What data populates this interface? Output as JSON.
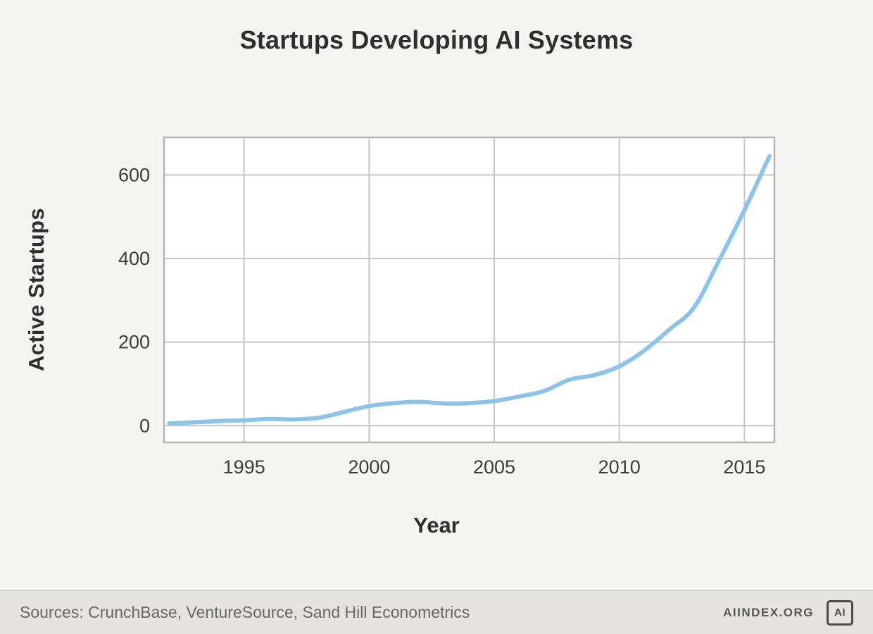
{
  "chart_data": {
    "type": "line",
    "title": "Startups Developing AI Systems",
    "xlabel": "Year",
    "ylabel": "Active Startups",
    "x": [
      1992,
      1993,
      1994,
      1995,
      1996,
      1997,
      1998,
      1999,
      2000,
      2001,
      2002,
      2003,
      2004,
      2005,
      2006,
      2007,
      2008,
      2009,
      2010,
      2011,
      2012,
      2013,
      2014,
      2015,
      2016
    ],
    "values": [
      5,
      8,
      11,
      13,
      16,
      15,
      19,
      33,
      47,
      54,
      57,
      53,
      54,
      59,
      70,
      83,
      110,
      121,
      142,
      180,
      230,
      284,
      397,
      516,
      645
    ],
    "x_ticks": [
      1995,
      2000,
      2005,
      2010,
      2015
    ],
    "y_ticks": [
      0,
      200,
      400,
      600
    ],
    "xlim": [
      1991.8,
      2016.2
    ],
    "ylim": [
      -40,
      690
    ],
    "line_color": "#8dc3e8",
    "grid": true,
    "legend_position": "none"
  },
  "footer": {
    "sources": "Sources: CrunchBase, VentureSource, Sand Hill Econometrics",
    "brand": "AIINDEX.ORG",
    "logo_text": "AI"
  }
}
